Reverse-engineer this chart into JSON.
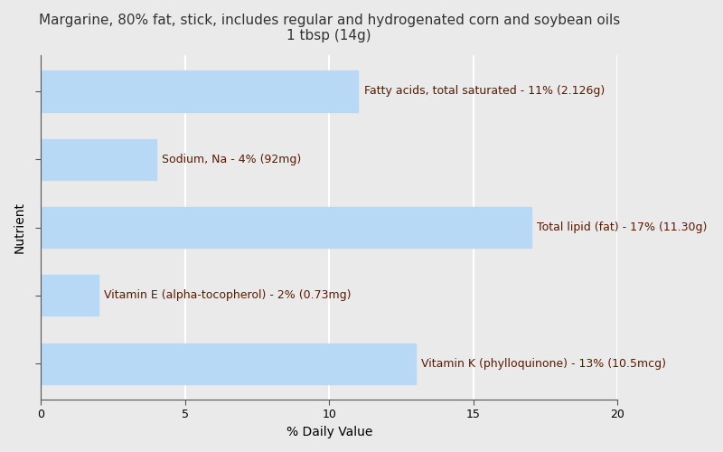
{
  "title_line1": "Margarine, 80% fat, stick, includes regular and hydrogenated corn and soybean oils",
  "title_line2": "1 tbsp (14g)",
  "nutrients_top_to_bottom": [
    "Fatty acids, total saturated",
    "Sodium, Na",
    "Total lipid (fat)",
    "Vitamin E (alpha-tocopherol)",
    "Vitamin K (phylloquinone)"
  ],
  "values_top_to_bottom": [
    11,
    4,
    17,
    2,
    13
  ],
  "labels_top_to_bottom": [
    "Fatty acids, total saturated - 11% (2.126g)",
    "Sodium, Na - 4% (92mg)",
    "Total lipid (fat) - 17% (11.30g)",
    "Vitamin E (alpha-tocopherol) - 2% (0.73mg)",
    "Vitamin K (phylloquinone) - 13% (10.5mcg)"
  ],
  "bar_color": "#b8d9f5",
  "label_color": "#5a1a00",
  "background_color": "#eaeaea",
  "xlabel": "% Daily Value",
  "ylabel": "Nutrient",
  "xlim": [
    0,
    20
  ],
  "xticks": [
    0,
    5,
    10,
    15,
    20
  ],
  "title_fontsize": 11,
  "label_fontsize": 9,
  "axis_label_fontsize": 10,
  "bar_height": 0.6
}
